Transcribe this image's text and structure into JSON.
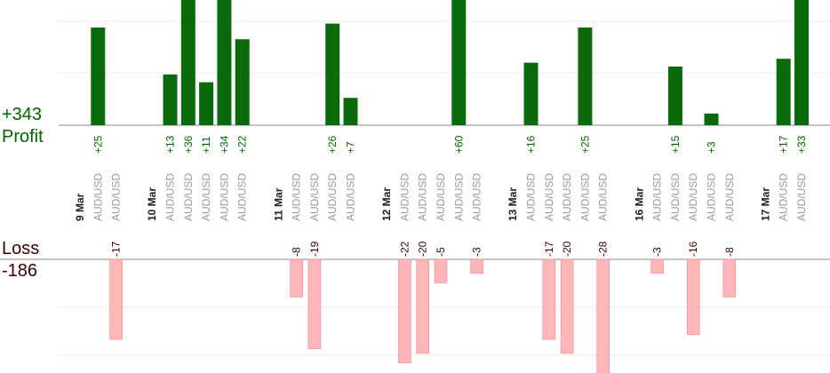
{
  "summary": {
    "profit_total": "+343",
    "profit_label": "Profit",
    "loss_label": "Loss",
    "loss_total": "-186"
  },
  "colors": {
    "profit_bar": "#0b6a0b",
    "profit_text": "#006400",
    "loss_bar": "#ffb6b9",
    "loss_text": "#3a0000",
    "axis": "#888888",
    "grid": "#ececec",
    "category_text": "#9a9a9a",
    "date_text": "#222222"
  },
  "chart_data": {
    "type": "bar",
    "profit_axis_max": 60,
    "loss_axis_max": 28,
    "columns": [
      {
        "kind": "date",
        "label": "9 Mar"
      },
      {
        "kind": "trade",
        "label": "AUD/USD",
        "value": 25
      },
      {
        "kind": "trade",
        "label": "AUD/USD",
        "value": -17
      },
      {
        "kind": "blank"
      },
      {
        "kind": "date",
        "label": "10 Mar"
      },
      {
        "kind": "trade",
        "label": "AUD/USD",
        "value": 13
      },
      {
        "kind": "trade",
        "label": "AUD/USD",
        "value": 36
      },
      {
        "kind": "trade",
        "label": "AUD/USD",
        "value": 11
      },
      {
        "kind": "trade",
        "label": "AUD/USD",
        "value": 34
      },
      {
        "kind": "trade",
        "label": "AUD/USD",
        "value": 22
      },
      {
        "kind": "blank"
      },
      {
        "kind": "date",
        "label": "11 Mar"
      },
      {
        "kind": "trade",
        "label": "AUD/USD",
        "value": -8
      },
      {
        "kind": "trade",
        "label": "AUD/USD",
        "value": -19
      },
      {
        "kind": "trade",
        "label": "AUD/USD",
        "value": 26
      },
      {
        "kind": "trade",
        "label": "AUD/USD",
        "value": 7
      },
      {
        "kind": "blank"
      },
      {
        "kind": "date",
        "label": "12 Mar"
      },
      {
        "kind": "trade",
        "label": "AUD/USD",
        "value": -22
      },
      {
        "kind": "trade",
        "label": "AUD/USD",
        "value": -20
      },
      {
        "kind": "trade",
        "label": "AUD/USD",
        "value": -5
      },
      {
        "kind": "trade",
        "label": "AUD/USD",
        "value": 60
      },
      {
        "kind": "trade",
        "label": "AUD/USD",
        "value": -3
      },
      {
        "kind": "blank"
      },
      {
        "kind": "date",
        "label": "13 Mar"
      },
      {
        "kind": "trade",
        "label": "AUD/USD",
        "value": 16
      },
      {
        "kind": "trade",
        "label": "AUD/USD",
        "value": -17
      },
      {
        "kind": "trade",
        "label": "AUD/USD",
        "value": -20
      },
      {
        "kind": "trade",
        "label": "AUD/USD",
        "value": 25
      },
      {
        "kind": "trade",
        "label": "AUD/USD",
        "value": -28
      },
      {
        "kind": "blank"
      },
      {
        "kind": "date",
        "label": "16 Mar"
      },
      {
        "kind": "trade",
        "label": "AUD/USD",
        "value": -3
      },
      {
        "kind": "trade",
        "label": "AUD/USD",
        "value": 15
      },
      {
        "kind": "trade",
        "label": "AUD/USD",
        "value": -16
      },
      {
        "kind": "trade",
        "label": "AUD/USD",
        "value": 3
      },
      {
        "kind": "trade",
        "label": "AUD/USD",
        "value": -8
      },
      {
        "kind": "blank"
      },
      {
        "kind": "date",
        "label": "17 Mar"
      },
      {
        "kind": "trade",
        "label": "AUD/USD",
        "value": 17
      },
      {
        "kind": "trade",
        "label": "AUD/USD",
        "value": 33
      }
    ]
  }
}
